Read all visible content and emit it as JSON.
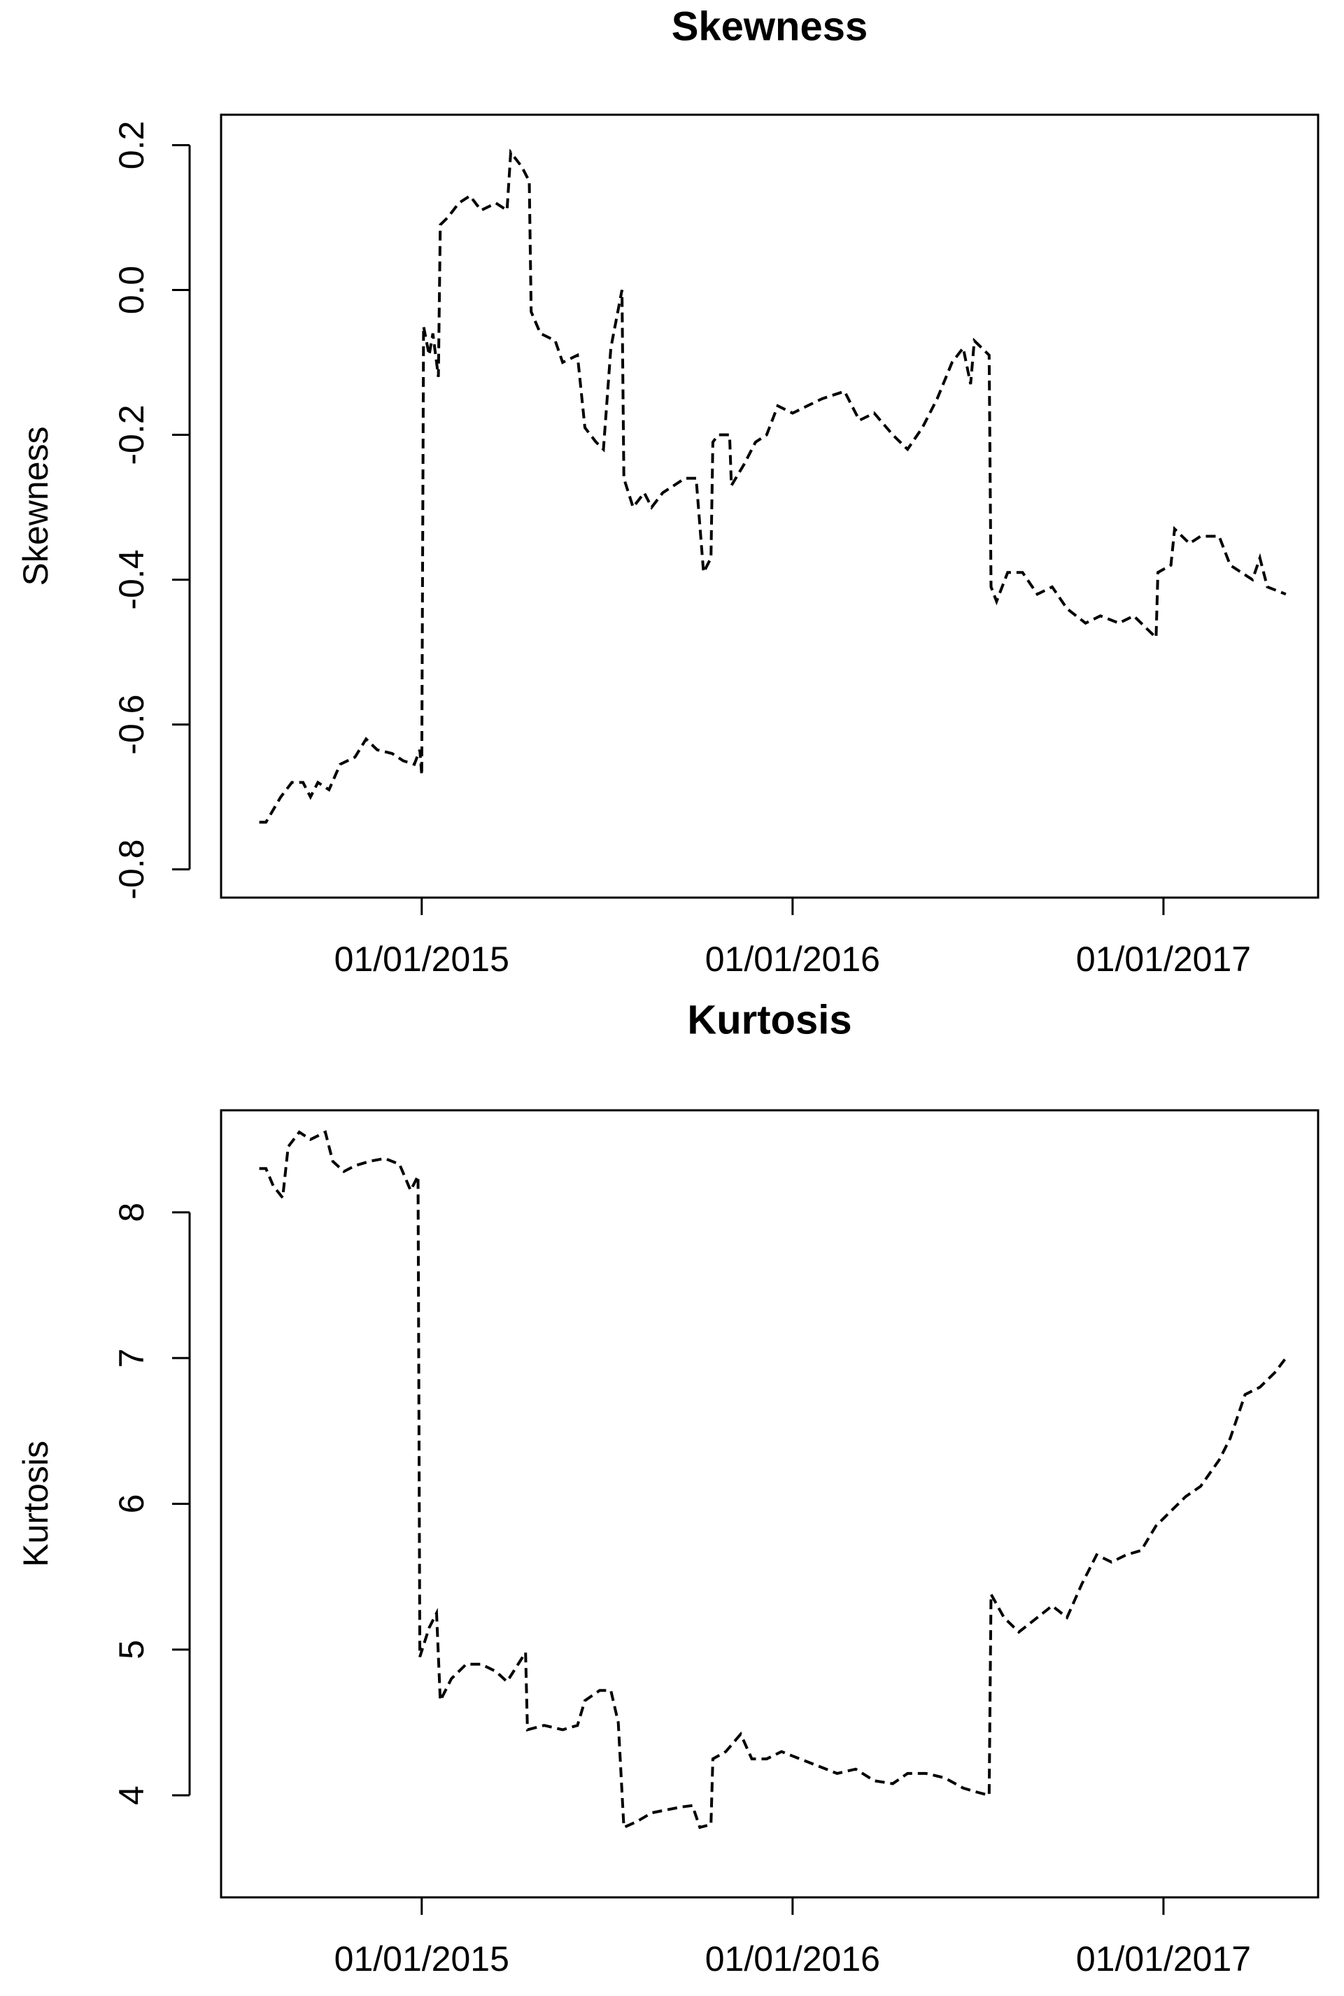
{
  "chart_data": [
    {
      "type": "line",
      "title": "Skewness",
      "y_label": "Skewness",
      "color": "#000000",
      "line_style": "dashed",
      "xlim": [
        2014.459,
        2017.417
      ],
      "ylim": [
        -0.839,
        0.242
      ],
      "xticks": [
        {
          "value": 2015,
          "label": "01/01/2015"
        },
        {
          "value": 2016,
          "label": "01/01/2016"
        },
        {
          "value": 2017,
          "label": "01/01/2017"
        }
      ],
      "yticks": [
        -0.8,
        -0.6,
        -0.4,
        -0.2,
        {
          "value": 0,
          "label": "0.0"
        },
        0.2
      ],
      "x": [
        2014.562,
        2014.58,
        2014.62,
        2014.65,
        2014.68,
        2014.7,
        2014.72,
        2014.75,
        2014.78,
        2014.82,
        2014.85,
        2014.88,
        2014.92,
        2014.95,
        2014.98,
        2014.995,
        2015.0,
        2015.005,
        2015.02,
        2015.03,
        2015.045,
        2015.05,
        2015.07,
        2015.1,
        2015.13,
        2015.16,
        2015.2,
        2015.23,
        2015.24,
        2015.27,
        2015.29,
        2015.295,
        2015.32,
        2015.36,
        2015.38,
        2015.42,
        2015.44,
        2015.47,
        2015.49,
        2015.51,
        2015.54,
        2015.545,
        2015.57,
        2015.6,
        2015.62,
        2015.65,
        2015.68,
        2015.71,
        2015.74,
        2015.76,
        2015.78,
        2015.785,
        2015.8,
        2015.83,
        2015.835,
        2015.87,
        2015.9,
        2015.93,
        2015.96,
        2016.0,
        2016.04,
        2016.08,
        2016.14,
        2016.18,
        2016.22,
        2016.27,
        2016.31,
        2016.35,
        2016.39,
        2016.43,
        2016.46,
        2016.48,
        2016.49,
        2016.53,
        2016.535,
        2016.55,
        2016.58,
        2016.62,
        2016.66,
        2016.7,
        2016.74,
        2016.79,
        2016.83,
        2016.88,
        2016.92,
        2016.96,
        2016.98,
        2016.985,
        2017.02,
        2017.03,
        2017.07,
        2017.1,
        2017.15,
        2017.18,
        2017.21,
        2017.24,
        2017.26,
        2017.28,
        2017.33
      ],
      "values": [
        -0.735,
        -0.735,
        -0.7,
        -0.68,
        -0.68,
        -0.7,
        -0.68,
        -0.69,
        -0.655,
        -0.645,
        -0.62,
        -0.635,
        -0.64,
        -0.65,
        -0.655,
        -0.635,
        -0.67,
        -0.05,
        -0.09,
        -0.06,
        -0.12,
        0.09,
        0.1,
        0.12,
        0.13,
        0.11,
        0.12,
        0.11,
        0.19,
        0.17,
        0.15,
        -0.03,
        -0.06,
        -0.07,
        -0.1,
        -0.09,
        -0.19,
        -0.21,
        -0.22,
        -0.08,
        0.0,
        -0.26,
        -0.3,
        -0.28,
        -0.3,
        -0.28,
        -0.27,
        -0.26,
        -0.26,
        -0.39,
        -0.37,
        -0.21,
        -0.2,
        -0.2,
        -0.27,
        -0.24,
        -0.21,
        -0.2,
        -0.16,
        -0.17,
        -0.16,
        -0.15,
        -0.14,
        -0.18,
        -0.17,
        -0.2,
        -0.22,
        -0.19,
        -0.15,
        -0.1,
        -0.08,
        -0.13,
        -0.07,
        -0.09,
        -0.41,
        -0.43,
        -0.39,
        -0.39,
        -0.42,
        -0.41,
        -0.44,
        -0.46,
        -0.45,
        -0.46,
        -0.45,
        -0.47,
        -0.48,
        -0.39,
        -0.38,
        -0.33,
        -0.35,
        -0.34,
        -0.34,
        -0.38,
        -0.39,
        -0.4,
        -0.37,
        -0.41,
        -0.42
      ]
    },
    {
      "type": "line",
      "title": "Kurtosis",
      "y_label": "Kurtosis",
      "color": "#000000",
      "line_style": "dashed",
      "xlim": [
        2014.459,
        2017.417
      ],
      "ylim": [
        3.3,
        8.7
      ],
      "xticks": [
        {
          "value": 2015,
          "label": "01/01/2015"
        },
        {
          "value": 2016,
          "label": "01/01/2016"
        },
        {
          "value": 2017,
          "label": "01/01/2017"
        }
      ],
      "yticks": [
        4,
        5,
        6,
        7,
        8
      ],
      "x": [
        2014.562,
        2014.58,
        2014.6,
        2014.625,
        2014.64,
        2014.67,
        2014.7,
        2014.74,
        2014.76,
        2014.79,
        2014.82,
        2014.86,
        2014.9,
        2014.94,
        2014.97,
        2014.99,
        2014.995,
        2015.02,
        2015.04,
        2015.05,
        2015.08,
        2015.12,
        2015.16,
        2015.2,
        2015.23,
        2015.26,
        2015.28,
        2015.285,
        2015.33,
        2015.38,
        2015.42,
        2015.44,
        2015.48,
        2015.51,
        2015.53,
        2015.545,
        2015.58,
        2015.62,
        2015.66,
        2015.7,
        2015.73,
        2015.75,
        2015.78,
        2015.785,
        2015.82,
        2015.86,
        2015.89,
        2015.93,
        2015.97,
        2016.02,
        2016.07,
        2016.12,
        2016.17,
        2016.22,
        2016.27,
        2016.31,
        2016.36,
        2016.41,
        2016.46,
        2016.5,
        2016.53,
        2016.535,
        2016.57,
        2016.61,
        2016.65,
        2016.7,
        2016.74,
        2016.78,
        2016.82,
        2016.86,
        2016.9,
        2016.94,
        2016.98,
        2017.02,
        2017.06,
        2017.1,
        2017.15,
        2017.18,
        2017.22,
        2017.26,
        2017.3,
        2017.33
      ],
      "values": [
        8.3,
        8.3,
        8.18,
        8.1,
        8.45,
        8.55,
        8.5,
        8.55,
        8.35,
        8.28,
        8.32,
        8.35,
        8.37,
        8.33,
        8.15,
        8.25,
        4.95,
        5.15,
        5.25,
        4.65,
        4.8,
        4.9,
        4.9,
        4.85,
        4.78,
        4.9,
        4.98,
        4.45,
        4.48,
        4.45,
        4.48,
        4.65,
        4.72,
        4.72,
        4.5,
        3.78,
        3.82,
        3.88,
        3.9,
        3.92,
        3.93,
        3.78,
        3.8,
        4.25,
        4.3,
        4.42,
        4.25,
        4.25,
        4.3,
        4.25,
        4.2,
        4.15,
        4.18,
        4.1,
        4.08,
        4.15,
        4.15,
        4.12,
        4.05,
        4.02,
        4.0,
        5.38,
        5.22,
        5.12,
        5.2,
        5.3,
        5.22,
        5.45,
        5.65,
        5.6,
        5.65,
        5.68,
        5.85,
        5.95,
        6.05,
        6.12,
        6.3,
        6.45,
        6.75,
        6.8,
        6.9,
        7.0
      ]
    }
  ]
}
